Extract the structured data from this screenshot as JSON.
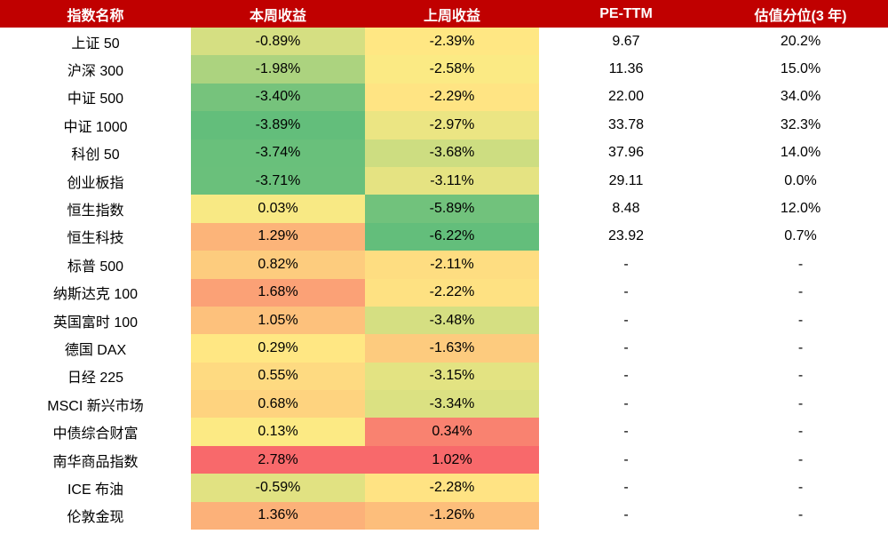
{
  "chart_data": {
    "type": "table",
    "columns": [
      "指数名称",
      "本周收益",
      "上周收益",
      "PE-TTM",
      "估值分位(3 年)"
    ],
    "rows": [
      {
        "name": "上证 50",
        "this_week": "-0.89%",
        "last_week": "-2.39%",
        "pe": "9.67",
        "pct": "20.2%"
      },
      {
        "name": "沪深 300",
        "this_week": "-1.98%",
        "last_week": "-2.58%",
        "pe": "11.36",
        "pct": "15.0%"
      },
      {
        "name": "中证 500",
        "this_week": "-3.40%",
        "last_week": "-2.29%",
        "pe": "22.00",
        "pct": "34.0%"
      },
      {
        "name": "中证 1000",
        "this_week": "-3.89%",
        "last_week": "-2.97%",
        "pe": "33.78",
        "pct": "32.3%"
      },
      {
        "name": "科创 50",
        "this_week": "-3.74%",
        "last_week": "-3.68%",
        "pe": "37.96",
        "pct": "14.0%"
      },
      {
        "name": "创业板指",
        "this_week": "-3.71%",
        "last_week": "-3.11%",
        "pe": "29.11",
        "pct": "0.0%"
      },
      {
        "name": "恒生指数",
        "this_week": "0.03%",
        "last_week": "-5.89%",
        "pe": "8.48",
        "pct": "12.0%"
      },
      {
        "name": "恒生科技",
        "this_week": "1.29%",
        "last_week": "-6.22%",
        "pe": "23.92",
        "pct": "0.7%"
      },
      {
        "name": "标普 500",
        "this_week": "0.82%",
        "last_week": "-2.11%",
        "pe": "-",
        "pct": "-"
      },
      {
        "name": "纳斯达克 100",
        "this_week": "1.68%",
        "last_week": "-2.22%",
        "pe": "-",
        "pct": "-"
      },
      {
        "name": "英国富时 100",
        "this_week": "1.05%",
        "last_week": "-3.48%",
        "pe": "-",
        "pct": "-"
      },
      {
        "name": "德国 DAX",
        "this_week": "0.29%",
        "last_week": "-1.63%",
        "pe": "-",
        "pct": "-"
      },
      {
        "name": "日经 225",
        "this_week": "0.55%",
        "last_week": "-3.15%",
        "pe": "-",
        "pct": "-"
      },
      {
        "name": "MSCI 新兴市场",
        "this_week": "0.68%",
        "last_week": "-3.34%",
        "pe": "-",
        "pct": "-"
      },
      {
        "name": "中债综合财富",
        "this_week": "0.13%",
        "last_week": "0.34%",
        "pe": "-",
        "pct": "-"
      },
      {
        "name": "南华商品指数",
        "this_week": "2.78%",
        "last_week": "1.02%",
        "pe": "-",
        "pct": "-"
      },
      {
        "name": "ICE 布油",
        "this_week": "-0.59%",
        "last_week": "-2.28%",
        "pe": "-",
        "pct": "-"
      },
      {
        "name": "伦敦金现",
        "this_week": "1.36%",
        "last_week": "-1.26%",
        "pe": "-",
        "pct": "-"
      }
    ],
    "heatmap_colors": {
      "header_bg": "#c00000",
      "low": "#63be7b",
      "mid": "#ffeb84",
      "high": "#f8696b"
    }
  }
}
